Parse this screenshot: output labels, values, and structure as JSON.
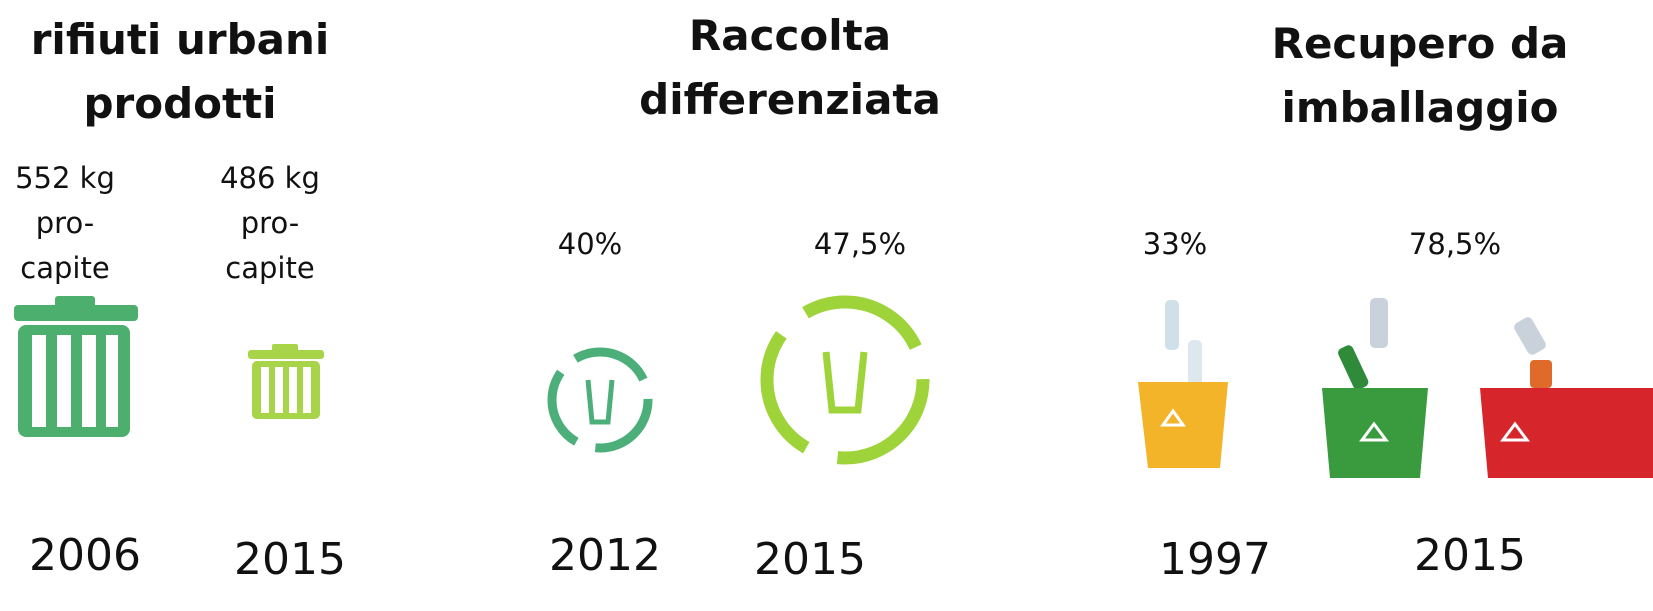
{
  "sections": [
    {
      "title": "rifiuti urbani prodotti",
      "items": [
        {
          "value": "552 kg pro-capite",
          "year": "2006"
        },
        {
          "value": "486 kg pro-capite",
          "year": "2015"
        }
      ]
    },
    {
      "title": "Raccolta differenziata",
      "items": [
        {
          "value": "40%",
          "year": "2012"
        },
        {
          "value": "47,5%",
          "year": "2015"
        }
      ]
    },
    {
      "title": "Recupero da imballaggio",
      "items": [
        {
          "value": "33%",
          "year": "1997"
        },
        {
          "value": "78,5%",
          "year": "2015"
        }
      ]
    }
  ]
}
